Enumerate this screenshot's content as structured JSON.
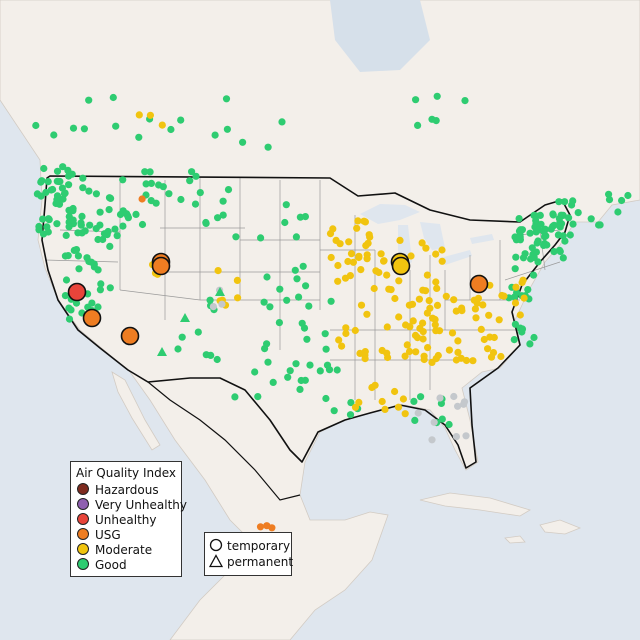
{
  "legend_aqi": {
    "title": "Air Quality Index",
    "items": [
      {
        "label": "Hazardous",
        "color": "#7e2b1f"
      },
      {
        "label": "Very Unhealthy",
        "color": "#8f5fb0"
      },
      {
        "label": "Unhealthy",
        "color": "#e8443a"
      },
      {
        "label": "USG",
        "color": "#ee7d22"
      },
      {
        "label": "Moderate",
        "color": "#f1c40f"
      },
      {
        "label": "Good",
        "color": "#2ecc71"
      }
    ]
  },
  "legend_type": {
    "items": [
      {
        "label": "temporary",
        "icon": "circle-icon"
      },
      {
        "label": "permanent",
        "icon": "triangle-icon"
      }
    ]
  },
  "colors": {
    "water": "#dfe6ee",
    "land": "#f3efea",
    "land_us": "#f4f0ec",
    "border": "#111111",
    "state_line": "#9a9a9a",
    "no_data": "#c4c8cc"
  }
}
